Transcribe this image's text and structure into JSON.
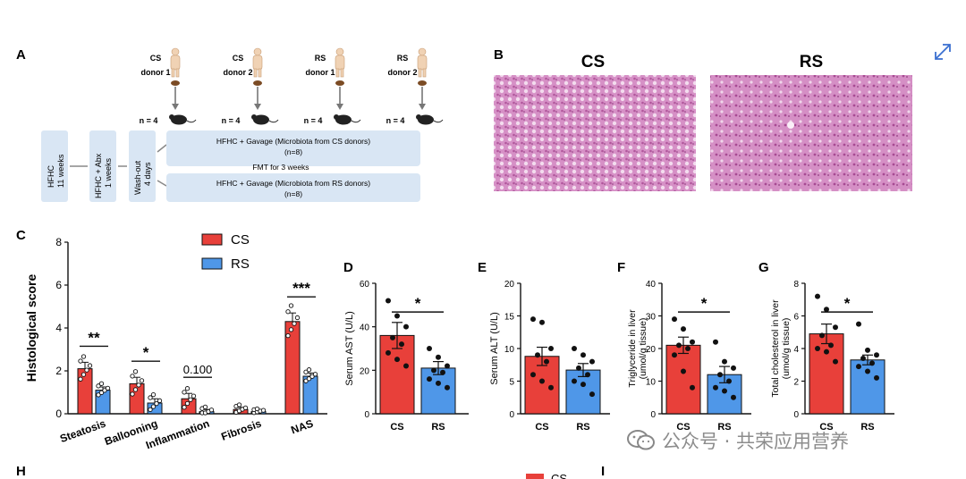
{
  "panels": {
    "a": {
      "letter": "A",
      "donors": [
        {
          "group": "CS",
          "name": "donor 1",
          "n": "n = 4"
        },
        {
          "group": "CS",
          "name": "donor 2",
          "n": "n = 4"
        },
        {
          "group": "RS",
          "name": "donor 1",
          "n": "n = 4"
        },
        {
          "group": "RS",
          "name": "donor 2",
          "n": "n = 4"
        }
      ],
      "steps": [
        "HFHC\n11 weeks",
        "HFHC + Abx\n1 weeks",
        "Wash-out\n4 days"
      ],
      "gavage_cs": "HFHC + Gavage (Microbiota from CS donors)",
      "gavage_cs_n": "(n=8)",
      "fmt": "FMT for 3 weeks",
      "gavage_rs": "HFHC + Gavage (Microbiota from RS donors)",
      "gavage_rs_n": "(n=8)"
    },
    "b": {
      "letter": "B",
      "left_title": "CS",
      "right_title": "RS"
    },
    "c": {
      "letter": "C"
    },
    "d": {
      "letter": "D"
    },
    "e": {
      "letter": "E"
    },
    "f": {
      "letter": "F"
    },
    "g": {
      "letter": "G"
    },
    "h": {
      "letter": "H"
    },
    "i": {
      "letter": "I"
    }
  },
  "colors": {
    "cs": "#e8403a",
    "rs": "#4f97e8",
    "box": "#d9e6f4",
    "tissue": "#d894c9"
  },
  "chart_data": [
    {
      "id": "C",
      "type": "bar",
      "ylabel": "Histological score",
      "ylim": [
        0,
        8
      ],
      "yticks": [
        "0",
        "2",
        "4",
        "6",
        "8"
      ],
      "categories": [
        "Steatosis",
        "Ballooning",
        "Inflammation",
        "Fibrosis",
        "NAS"
      ],
      "series": [
        {
          "name": "CS",
          "values": [
            2.1,
            1.4,
            0.7,
            0.2,
            4.3
          ],
          "errors": [
            0.3,
            0.3,
            0.25,
            0.1,
            0.4
          ]
        },
        {
          "name": "RS",
          "values": [
            1.1,
            0.5,
            0.1,
            0.1,
            1.75
          ],
          "errors": [
            0.15,
            0.2,
            0.1,
            0.05,
            0.15
          ]
        }
      ],
      "annotations": [
        "**",
        "*",
        "0.100",
        "",
        "***"
      ],
      "legend": "top-center"
    },
    {
      "id": "D",
      "type": "bar",
      "ylabel": "Serum AST (U/L)",
      "ylim": [
        0,
        60
      ],
      "yticks": [
        "0",
        "20",
        "40",
        "60"
      ],
      "categories": [
        "CS",
        "RS"
      ],
      "values": [
        36,
        21
      ],
      "errors": [
        6,
        3
      ],
      "points": [
        [
          52,
          45,
          40,
          35,
          32,
          28,
          25,
          22
        ],
        [
          30,
          26,
          22,
          20,
          19,
          16,
          14,
          12
        ]
      ],
      "significance": "*"
    },
    {
      "id": "E",
      "type": "bar",
      "ylabel": "Serum ALT (U/L)",
      "ylim": [
        0,
        20
      ],
      "yticks": [
        "0",
        "5",
        "10",
        "15",
        "20"
      ],
      "categories": [
        "CS",
        "RS"
      ],
      "values": [
        8.8,
        6.7
      ],
      "errors": [
        1.4,
        1.0
      ],
      "points": [
        [
          14.5,
          14,
          10,
          9,
          8,
          6,
          5,
          4
        ],
        [
          10,
          9,
          8,
          7,
          6,
          5,
          4.5,
          3
        ]
      ],
      "significance": ""
    },
    {
      "id": "F",
      "type": "bar",
      "ylabel": "Triglyceride in liver (umol/g tissue)",
      "ylim": [
        0,
        40
      ],
      "yticks": [
        "0",
        "10",
        "20",
        "30",
        "40"
      ],
      "categories": [
        "CS",
        "RS"
      ],
      "values": [
        21,
        12
      ],
      "errors": [
        2.5,
        2.5
      ],
      "points": [
        [
          29,
          26,
          22,
          21,
          20,
          18,
          13,
          8
        ],
        [
          22,
          16,
          14,
          12,
          10,
          8,
          7,
          5
        ]
      ],
      "significance": "*"
    },
    {
      "id": "G",
      "type": "bar",
      "ylabel": "Total cholesterol in liver (umol/g tissue)",
      "ylim": [
        0,
        8
      ],
      "yticks": [
        "0",
        "2",
        "4",
        "6",
        "8"
      ],
      "categories": [
        "CS",
        "RS"
      ],
      "values": [
        4.9,
        3.3
      ],
      "errors": [
        0.6,
        0.3
      ],
      "points": [
        [
          7.2,
          6.4,
          5.3,
          4.8,
          4.2,
          4.0,
          3.8,
          3.2
        ],
        [
          5.5,
          3.9,
          3.6,
          3.4,
          3.1,
          2.9,
          2.6,
          2.2
        ]
      ],
      "significance": "*"
    },
    {
      "id": "H",
      "type": "bar",
      "legend_items": [
        "CS"
      ]
    }
  ],
  "watermark": "公众号 · 共荣应用营养",
  "icons": {
    "expand": "expand-icon",
    "watermark": "wechat-logo-icon"
  }
}
